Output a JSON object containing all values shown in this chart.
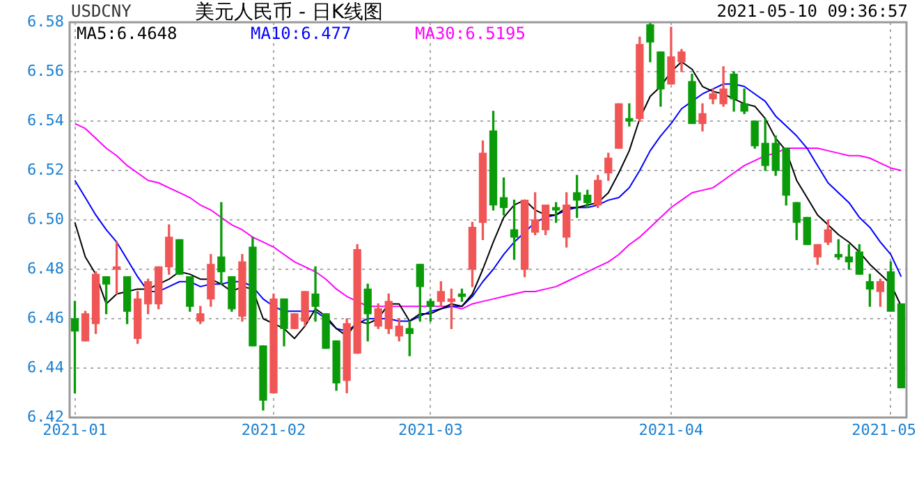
{
  "chart_data": {
    "type": "candlestick",
    "title": "美元人民币 - 日K线图",
    "annotations": [
      "USDCNY",
      "2021-05-10 09:36:57"
    ],
    "categories": [
      "2021-01",
      null,
      null,
      null,
      null,
      null,
      null,
      null,
      null,
      null,
      null,
      null,
      null,
      null,
      null,
      null,
      null,
      null,
      null,
      "2021-02",
      null,
      null,
      null,
      null,
      null,
      null,
      null,
      null,
      null,
      null,
      null,
      null,
      null,
      null,
      "2021-03",
      null,
      null,
      null,
      null,
      null,
      null,
      null,
      null,
      null,
      null,
      null,
      null,
      null,
      null,
      null,
      null,
      null,
      null,
      null,
      null,
      null,
      null,
      "2021-04",
      null,
      null,
      null,
      null,
      null,
      null,
      null,
      null,
      null,
      null,
      null,
      null,
      null,
      null,
      null,
      null,
      null,
      null,
      null,
      null,
      "2021-05",
      null
    ],
    "ohlc": [
      [
        6.46,
        6.467,
        6.43,
        6.455
      ],
      [
        6.451,
        6.463,
        6.451,
        6.462
      ],
      [
        6.458,
        6.479,
        6.454,
        6.478
      ],
      [
        6.477,
        6.477,
        6.462,
        6.474
      ],
      [
        6.48,
        6.491,
        6.47,
        6.481
      ],
      [
        6.477,
        6.477,
        6.458,
        6.463
      ],
      [
        6.452,
        6.471,
        6.45,
        6.468
      ],
      [
        6.466,
        6.476,
        6.462,
        6.475
      ],
      [
        6.466,
        6.481,
        6.464,
        6.481
      ],
      [
        6.481,
        6.498,
        6.478,
        6.493
      ],
      [
        6.492,
        6.492,
        6.478,
        6.478
      ],
      [
        6.477,
        6.477,
        6.463,
        6.465
      ],
      [
        6.459,
        6.465,
        6.458,
        6.462
      ],
      [
        6.468,
        6.486,
        6.465,
        6.482
      ],
      [
        6.485,
        6.507,
        6.474,
        6.479
      ],
      [
        6.477,
        6.477,
        6.463,
        6.464
      ],
      [
        6.461,
        6.486,
        6.459,
        6.483
      ],
      [
        6.489,
        6.493,
        6.449,
        6.449
      ],
      [
        6.449,
        6.449,
        6.423,
        6.427
      ],
      [
        6.43,
        6.47,
        6.43,
        6.468
      ],
      [
        6.468,
        6.468,
        6.449,
        6.456
      ],
      [
        6.456,
        6.462,
        6.456,
        6.462
      ],
      [
        6.459,
        6.471,
        6.457,
        6.471
      ],
      [
        6.47,
        6.481,
        6.459,
        6.465
      ],
      [
        6.462,
        6.462,
        6.448,
        6.448
      ],
      [
        6.451,
        6.451,
        6.431,
        6.434
      ],
      [
        6.435,
        6.46,
        6.43,
        6.458
      ],
      [
        6.446,
        6.49,
        6.446,
        6.488
      ],
      [
        6.472,
        6.474,
        6.451,
        6.462
      ],
      [
        6.457,
        6.466,
        6.456,
        6.464
      ],
      [
        6.456,
        6.47,
        6.454,
        6.467
      ],
      [
        6.453,
        6.46,
        6.451,
        6.457
      ],
      [
        6.456,
        6.459,
        6.445,
        6.454
      ],
      [
        6.482,
        6.482,
        6.459,
        6.473
      ],
      [
        6.467,
        6.468,
        6.459,
        6.465
      ],
      [
        6.467,
        6.475,
        6.465,
        6.471
      ],
      [
        6.467,
        6.472,
        6.456,
        6.468
      ],
      [
        6.47,
        6.472,
        6.467,
        6.469
      ],
      [
        6.48,
        6.499,
        6.473,
        6.497
      ],
      [
        6.499,
        6.532,
        6.492,
        6.527
      ],
      [
        6.536,
        6.544,
        6.504,
        6.506
      ],
      [
        6.509,
        6.517,
        6.502,
        6.505
      ],
      [
        6.496,
        6.508,
        6.484,
        6.493
      ],
      [
        6.48,
        6.508,
        6.477,
        6.508
      ],
      [
        6.495,
        6.511,
        6.494,
        6.5
      ],
      [
        6.496,
        6.506,
        6.494,
        6.506
      ],
      [
        6.505,
        6.507,
        6.499,
        6.504
      ],
      [
        6.493,
        6.511,
        6.489,
        6.506
      ],
      [
        6.511,
        6.518,
        6.501,
        6.508
      ],
      [
        6.51,
        6.512,
        6.505,
        6.507
      ],
      [
        6.506,
        6.518,
        6.505,
        6.516
      ],
      [
        6.519,
        6.527,
        6.516,
        6.525
      ],
      [
        6.529,
        6.547,
        6.529,
        6.547
      ],
      [
        6.541,
        6.547,
        6.538,
        6.54
      ],
      [
        6.541,
        6.574,
        6.54,
        6.571
      ],
      [
        6.579,
        6.58,
        6.564,
        6.572
      ],
      [
        6.568,
        6.568,
        6.546,
        6.553
      ],
      [
        6.555,
        6.578,
        6.555,
        6.566
      ],
      [
        6.564,
        6.569,
        6.56,
        6.568
      ],
      [
        6.556,
        6.559,
        6.539,
        6.539
      ],
      [
        6.539,
        6.547,
        6.536,
        6.543
      ],
      [
        6.549,
        6.553,
        6.547,
        6.551
      ],
      [
        6.547,
        6.562,
        6.546,
        6.553
      ],
      [
        6.559,
        6.56,
        6.544,
        6.549
      ],
      [
        6.547,
        6.553,
        6.543,
        6.544
      ],
      [
        6.54,
        6.54,
        6.529,
        6.53
      ],
      [
        6.531,
        6.541,
        6.52,
        6.522
      ],
      [
        6.531,
        6.534,
        6.518,
        6.52
      ],
      [
        6.529,
        6.529,
        6.506,
        6.51
      ],
      [
        6.507,
        6.507,
        6.492,
        6.499
      ],
      [
        6.501,
        6.501,
        6.49,
        6.49
      ],
      [
        6.485,
        6.49,
        6.482,
        6.49
      ],
      [
        6.491,
        6.5,
        6.49,
        6.496
      ],
      [
        6.486,
        6.492,
        6.484,
        6.485
      ],
      [
        6.485,
        6.49,
        6.48,
        6.483
      ],
      [
        6.487,
        6.49,
        6.478,
        6.478
      ],
      [
        6.475,
        6.478,
        6.465,
        6.472
      ],
      [
        6.471,
        6.476,
        6.465,
        6.475
      ],
      [
        6.479,
        6.483,
        6.463,
        6.463
      ],
      [
        6.466,
        6.466,
        6.432,
        6.432
      ]
    ],
    "colors": [
      "#0a9a0a",
      "#f05656",
      "#f05656",
      "#0a9a0a",
      "#f05656",
      "#0a9a0a",
      "#f05656",
      "#f05656",
      "#f05656",
      "#f05656",
      "#0a9a0a",
      "#0a9a0a",
      "#f05656",
      "#f05656",
      "#0a9a0a",
      "#0a9a0a",
      "#f05656",
      "#0a9a0a",
      "#0a9a0a",
      "#f05656",
      "#0a9a0a",
      "#f05656",
      "#f05656",
      "#0a9a0a",
      "#0a9a0a",
      "#0a9a0a",
      "#f05656",
      "#f05656",
      "#0a9a0a",
      "#f05656",
      "#f05656",
      "#f05656",
      "#0a9a0a",
      "#0a9a0a",
      "#0a9a0a",
      "#f05656",
      "#f05656",
      "#0a9a0a",
      "#f05656",
      "#f05656",
      "#0a9a0a",
      "#0a9a0a",
      "#0a9a0a",
      "#f05656",
      "#f05656",
      "#f05656",
      "#0a9a0a",
      "#f05656",
      "#0a9a0a",
      "#0a9a0a",
      "#f05656",
      "#f05656",
      "#f05656",
      "#0a9a0a",
      "#f05656",
      "#0a9a0a",
      "#0a9a0a",
      "#f05656",
      "#f05656",
      "#0a9a0a",
      "#f05656",
      "#f05656",
      "#f05656",
      "#0a9a0a",
      "#0a9a0a",
      "#0a9a0a",
      "#0a9a0a",
      "#0a9a0a",
      "#0a9a0a",
      "#0a9a0a",
      "#0a9a0a",
      "#f05656",
      "#f05656",
      "#0a9a0a",
      "#0a9a0a",
      "#0a9a0a",
      "#0a9a0a",
      "#f05656",
      "#0a9a0a",
      "#0a9a0a"
    ],
    "series": [
      {
        "name": "MA5:6.4648",
        "type": "line",
        "color": "#000000",
        "values": [
          6.499,
          6.485,
          6.478,
          6.466,
          6.47,
          6.471,
          6.472,
          6.472,
          6.474,
          6.476,
          6.479,
          6.478,
          6.476,
          6.476,
          6.474,
          6.471,
          6.473,
          6.472,
          6.46,
          6.458,
          6.456,
          6.452,
          6.457,
          6.464,
          6.461,
          6.456,
          6.453,
          6.459,
          6.458,
          6.46,
          6.466,
          6.466,
          6.459,
          6.462,
          6.462,
          6.464,
          6.466,
          6.465,
          6.47,
          6.48,
          6.491,
          6.501,
          6.506,
          6.508,
          6.504,
          6.502,
          6.502,
          6.505,
          6.505,
          6.506,
          6.507,
          6.511,
          6.519,
          6.528,
          6.541,
          6.55,
          6.554,
          6.56,
          6.564,
          6.561,
          6.554,
          6.552,
          6.551,
          6.549,
          6.547,
          6.546,
          6.541,
          6.533,
          6.528,
          6.516,
          6.509,
          6.502,
          6.498,
          6.494,
          6.491,
          6.487,
          6.482,
          6.478,
          6.474,
          6.465
        ]
      },
      {
        "name": "MA10:6.477",
        "type": "line",
        "color": "#0000ff",
        "values": [
          6.516,
          6.509,
          6.502,
          6.496,
          6.491,
          6.484,
          6.477,
          6.471,
          6.471,
          6.473,
          6.475,
          6.475,
          6.473,
          6.474,
          6.474,
          6.475,
          6.475,
          6.473,
          6.468,
          6.465,
          6.463,
          6.463,
          6.463,
          6.463,
          6.46,
          6.456,
          6.455,
          6.458,
          6.46,
          6.46,
          6.46,
          6.459,
          6.459,
          6.461,
          6.463,
          6.464,
          6.465,
          6.465,
          6.469,
          6.475,
          6.48,
          6.486,
          6.491,
          6.495,
          6.499,
          6.501,
          6.502,
          6.504,
          6.505,
          6.505,
          6.506,
          6.508,
          6.509,
          6.513,
          6.52,
          6.528,
          6.534,
          6.539,
          6.545,
          6.548,
          6.551,
          6.553,
          6.555,
          6.555,
          6.554,
          6.551,
          6.548,
          6.542,
          6.538,
          6.534,
          6.529,
          6.522,
          6.515,
          6.511,
          6.507,
          6.501,
          6.497,
          6.491,
          6.486,
          6.477
        ]
      },
      {
        "name": "MA30:6.5195",
        "type": "line",
        "color": "#ff00ff",
        "values": [
          6.539,
          6.537,
          6.533,
          6.529,
          6.526,
          6.522,
          6.519,
          6.516,
          6.515,
          6.513,
          6.511,
          6.509,
          6.506,
          6.504,
          6.501,
          6.498,
          6.496,
          6.493,
          6.491,
          6.489,
          6.486,
          6.483,
          6.481,
          6.479,
          6.476,
          6.472,
          6.469,
          6.467,
          6.465,
          6.465,
          6.465,
          6.465,
          6.465,
          6.465,
          6.465,
          6.465,
          6.465,
          6.464,
          6.466,
          6.467,
          6.468,
          6.469,
          6.47,
          6.471,
          6.471,
          6.472,
          6.473,
          6.475,
          6.477,
          6.479,
          6.481,
          6.483,
          6.486,
          6.49,
          6.493,
          6.497,
          6.501,
          6.505,
          6.508,
          6.511,
          6.512,
          6.513,
          6.516,
          6.519,
          6.522,
          6.524,
          6.526,
          6.527,
          6.529,
          6.529,
          6.529,
          6.529,
          6.528,
          6.527,
          6.526,
          6.526,
          6.525,
          6.523,
          6.521,
          6.52
        ]
      }
    ],
    "ylim": [
      6.42,
      6.58
    ],
    "yticks": [
      6.42,
      6.44,
      6.46,
      6.48,
      {
        "value": 6.5,
        "label": "6.50"
      },
      6.52,
      6.54,
      6.56,
      6.58
    ],
    "grid": true,
    "legend": "top left",
    "marker": "none"
  }
}
